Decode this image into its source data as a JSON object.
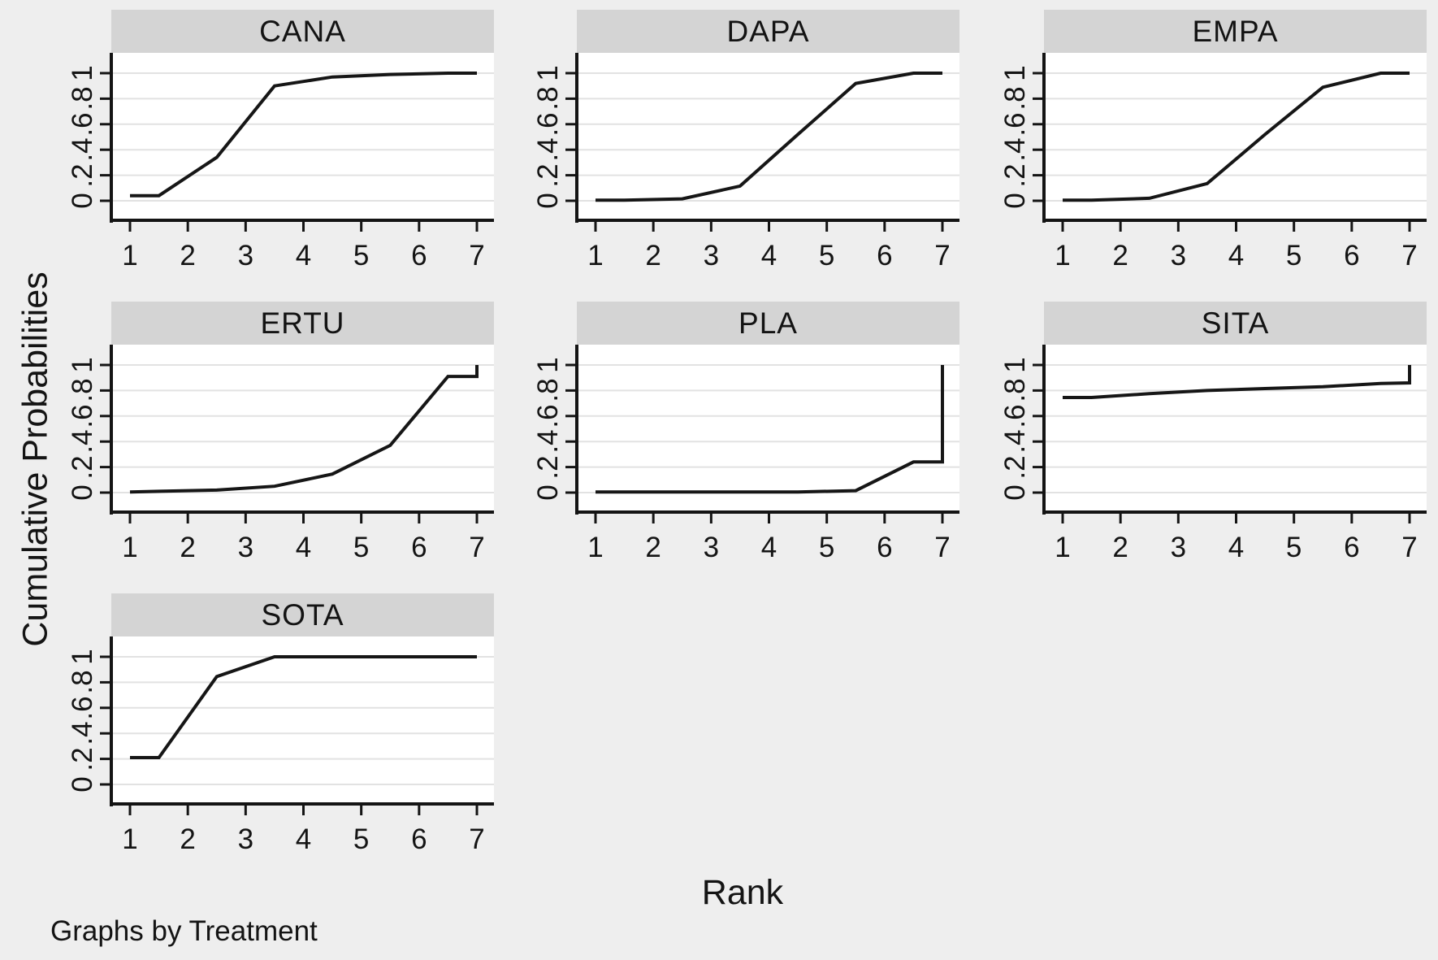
{
  "figure": {
    "ylabel": "Cumulative Probabilities",
    "xlabel": "Rank",
    "footnote": "Graphs by Treatment"
  },
  "chart_data": {
    "type": "line",
    "layout": "3-column small multiples, 7 panels, shared axes",
    "title": "",
    "xlabel": "Rank",
    "ylabel": "Cumulative Probabilities",
    "footnote": "Graphs by Treatment",
    "xlim": [
      0.7,
      7.3
    ],
    "ylim": [
      -0.15,
      1.15
    ],
    "x_ticks": [
      1,
      2,
      3,
      4,
      5,
      6,
      7
    ],
    "x_tick_labels": [
      "1",
      "2",
      "3",
      "4",
      "5",
      "6",
      "7"
    ],
    "y_ticks": [
      0,
      0.2,
      0.4,
      0.6,
      0.8,
      1
    ],
    "y_tick_labels": [
      "0",
      ".2",
      ".4",
      ".6",
      ".8",
      "1"
    ],
    "grid": "horizontal-only",
    "legend": "none",
    "line_color": "#161616",
    "panels": [
      {
        "title": "CANA",
        "points": [
          [
            1,
            0.04
          ],
          [
            1.5,
            0.04
          ],
          [
            2.5,
            0.34
          ],
          [
            3.5,
            0.9
          ],
          [
            4.5,
            0.97
          ],
          [
            5.5,
            0.99
          ],
          [
            6.5,
            1.0
          ],
          [
            7,
            1.0
          ]
        ]
      },
      {
        "title": "DAPA",
        "points": [
          [
            1,
            0.005
          ],
          [
            1.5,
            0.005
          ],
          [
            2.5,
            0.015
          ],
          [
            3.5,
            0.115
          ],
          [
            4.5,
            0.52
          ],
          [
            5.5,
            0.92
          ],
          [
            6.5,
            1.0
          ],
          [
            7,
            1.0
          ]
        ]
      },
      {
        "title": "EMPA",
        "points": [
          [
            1,
            0.005
          ],
          [
            1.5,
            0.005
          ],
          [
            2.5,
            0.02
          ],
          [
            3.5,
            0.135
          ],
          [
            4.5,
            0.52
          ],
          [
            5.5,
            0.89
          ],
          [
            6.5,
            1.0
          ],
          [
            7,
            1.0
          ]
        ]
      },
      {
        "title": "ERTU",
        "points": [
          [
            1,
            0.005
          ],
          [
            1.5,
            0.01
          ],
          [
            2.5,
            0.02
          ],
          [
            3.5,
            0.05
          ],
          [
            4.5,
            0.145
          ],
          [
            5.5,
            0.37
          ],
          [
            6.5,
            0.91
          ],
          [
            7,
            0.91
          ],
          [
            7,
            1.0
          ]
        ]
      },
      {
        "title": "PLA",
        "points": [
          [
            1,
            0.005
          ],
          [
            1.5,
            0.005
          ],
          [
            2.5,
            0.005
          ],
          [
            3.5,
            0.005
          ],
          [
            4.5,
            0.005
          ],
          [
            5.5,
            0.015
          ],
          [
            6.5,
            0.24
          ],
          [
            7,
            0.24
          ],
          [
            7,
            1.0
          ]
        ]
      },
      {
        "title": "SITA",
        "points": [
          [
            1,
            0.745
          ],
          [
            1.5,
            0.745
          ],
          [
            2.5,
            0.775
          ],
          [
            3.5,
            0.8
          ],
          [
            4.5,
            0.815
          ],
          [
            5.5,
            0.83
          ],
          [
            6.5,
            0.855
          ],
          [
            7,
            0.86
          ],
          [
            7,
            1.0
          ]
        ]
      },
      {
        "title": "SOTA",
        "points": [
          [
            1,
            0.21
          ],
          [
            1.5,
            0.21
          ],
          [
            2.5,
            0.845
          ],
          [
            3.5,
            1.0
          ],
          [
            4.5,
            1.0
          ],
          [
            5.5,
            1.0
          ],
          [
            6.5,
            1.0
          ],
          [
            7,
            1.0
          ]
        ]
      }
    ]
  },
  "style": {
    "background": "#eeeeee",
    "panel_background": "#ffffff",
    "title_bar_background": "#d4d4d4",
    "gridline_color": "#e2e2e2",
    "axis_color": "#141414",
    "line_color": "#161616"
  }
}
